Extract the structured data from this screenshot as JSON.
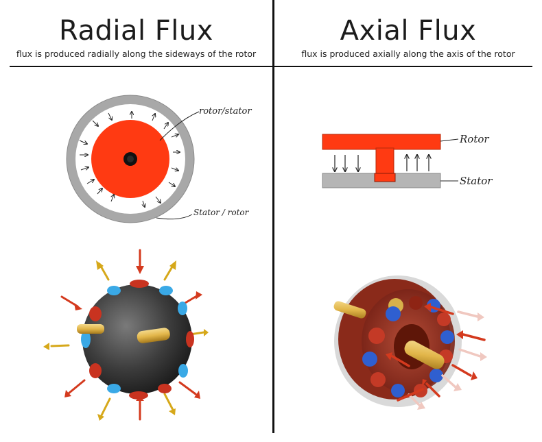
{
  "left": {
    "title": "Radial Flux",
    "subtitle": "flux is produced radially along the sideways of the rotor",
    "labels": {
      "inner": "rotor/stator",
      "outer": "Stator / rotor"
    }
  },
  "right": {
    "title": "Axial Flux",
    "subtitle": "flux is produced axially along the axis of the rotor",
    "labels": {
      "top": "Rotor",
      "bottom": "Stator"
    }
  },
  "colors": {
    "rotor_red": "#ff3a12",
    "stator_gray": "#a8a8a8",
    "magnet_blue": "#3aa9e6",
    "arrow_red": "#d43a1e",
    "arrow_yellow": "#d6a81a",
    "shaft_gold": "#e2b64a"
  },
  "icons": [
    "radial-flux-cross-section",
    "axial-flux-cross-section",
    "radial-flux-3d-motor",
    "axial-flux-3d-motor"
  ]
}
